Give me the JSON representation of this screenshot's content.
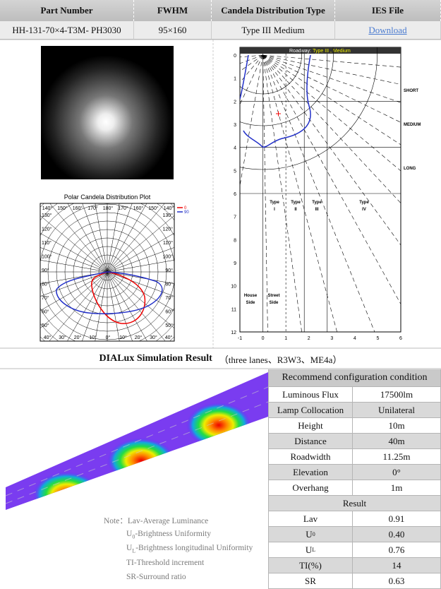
{
  "spec_table": {
    "headers": [
      "Part Number",
      "FWHM",
      "Candela Distribution Type",
      "IES File"
    ],
    "row": [
      "HH-131-70×4-T3M- PH3030",
      "95×160",
      "Type III Medium",
      "Download"
    ]
  },
  "polar_plot": {
    "title": "Polar Candela Distribution Plot",
    "legend": [
      "0",
      "90"
    ],
    "top_labels": [
      "140°",
      "150°",
      "160°",
      "170°",
      "180°",
      "170°",
      "160°",
      "150°",
      "140°"
    ],
    "side_labels": [
      "130°",
      "120°",
      "110°",
      "100°",
      "90°",
      "80°",
      "70°",
      "60°",
      "50°"
    ],
    "bottom_labels": [
      "40°",
      "30°",
      "20°",
      "10°",
      "0°",
      "10°",
      "20°",
      "30°",
      "40°"
    ]
  },
  "isocandela_plot": {
    "title_prefix": "Roadway:",
    "title_type": "Type III , Medium",
    "y_labels": [
      "0",
      "1",
      "2",
      "3",
      "4",
      "5",
      "6",
      "7",
      "8",
      "9",
      "10",
      "11",
      "12"
    ],
    "x_labels": [
      "-1",
      "0",
      "1",
      "2",
      "3",
      "4",
      "5",
      "6"
    ],
    "range_labels": [
      "SHORT",
      "MEDIUM",
      "LONG"
    ],
    "type_labels": [
      [
        "Type",
        "I"
      ],
      [
        "Type",
        "II"
      ],
      [
        "Type",
        "III"
      ],
      [
        "Type",
        "IV"
      ]
    ],
    "side_labels": [
      [
        "House",
        "Side"
      ],
      [
        "Street",
        "Side"
      ]
    ]
  },
  "simulation": {
    "title": "DIALux Simulation Result",
    "subtitle": "（three lanes、R3W3、ME4a）",
    "notes": [
      {
        "prefix": "Note：",
        "text": "Lav-Average Luminance"
      },
      {
        "base": "U",
        "sub": "0",
        "text": "-Brightness Uniformity"
      },
      {
        "base": "U",
        "sub": "L",
        "text": "-Brightness longitudinal Uniformity"
      },
      {
        "text": "TI-Threshold increment"
      },
      {
        "text": "SR-Surround ratio"
      }
    ],
    "config": {
      "header": "Recommend configuration condition",
      "rows": [
        [
          "Luminous Flux",
          "17500lm"
        ],
        [
          "Lamp Collocation",
          "Unilateral"
        ],
        [
          "Height",
          "10m"
        ],
        [
          "Distance",
          "40m"
        ],
        [
          "Roadwidth",
          "11.25m"
        ],
        [
          "Elevation",
          "0°"
        ],
        [
          "Overhang",
          "1m"
        ]
      ]
    },
    "result": {
      "header": "Result",
      "rows": [
        [
          {
            "base": "Lav"
          },
          "0.91"
        ],
        [
          {
            "base": "U",
            "sub": "0"
          },
          "0.40"
        ],
        [
          {
            "base": "U",
            "sub": "L"
          },
          "0.76"
        ],
        [
          {
            "base": "TI(%)"
          },
          "14"
        ],
        [
          {
            "base": "SR"
          },
          "0.63"
        ]
      ]
    }
  }
}
